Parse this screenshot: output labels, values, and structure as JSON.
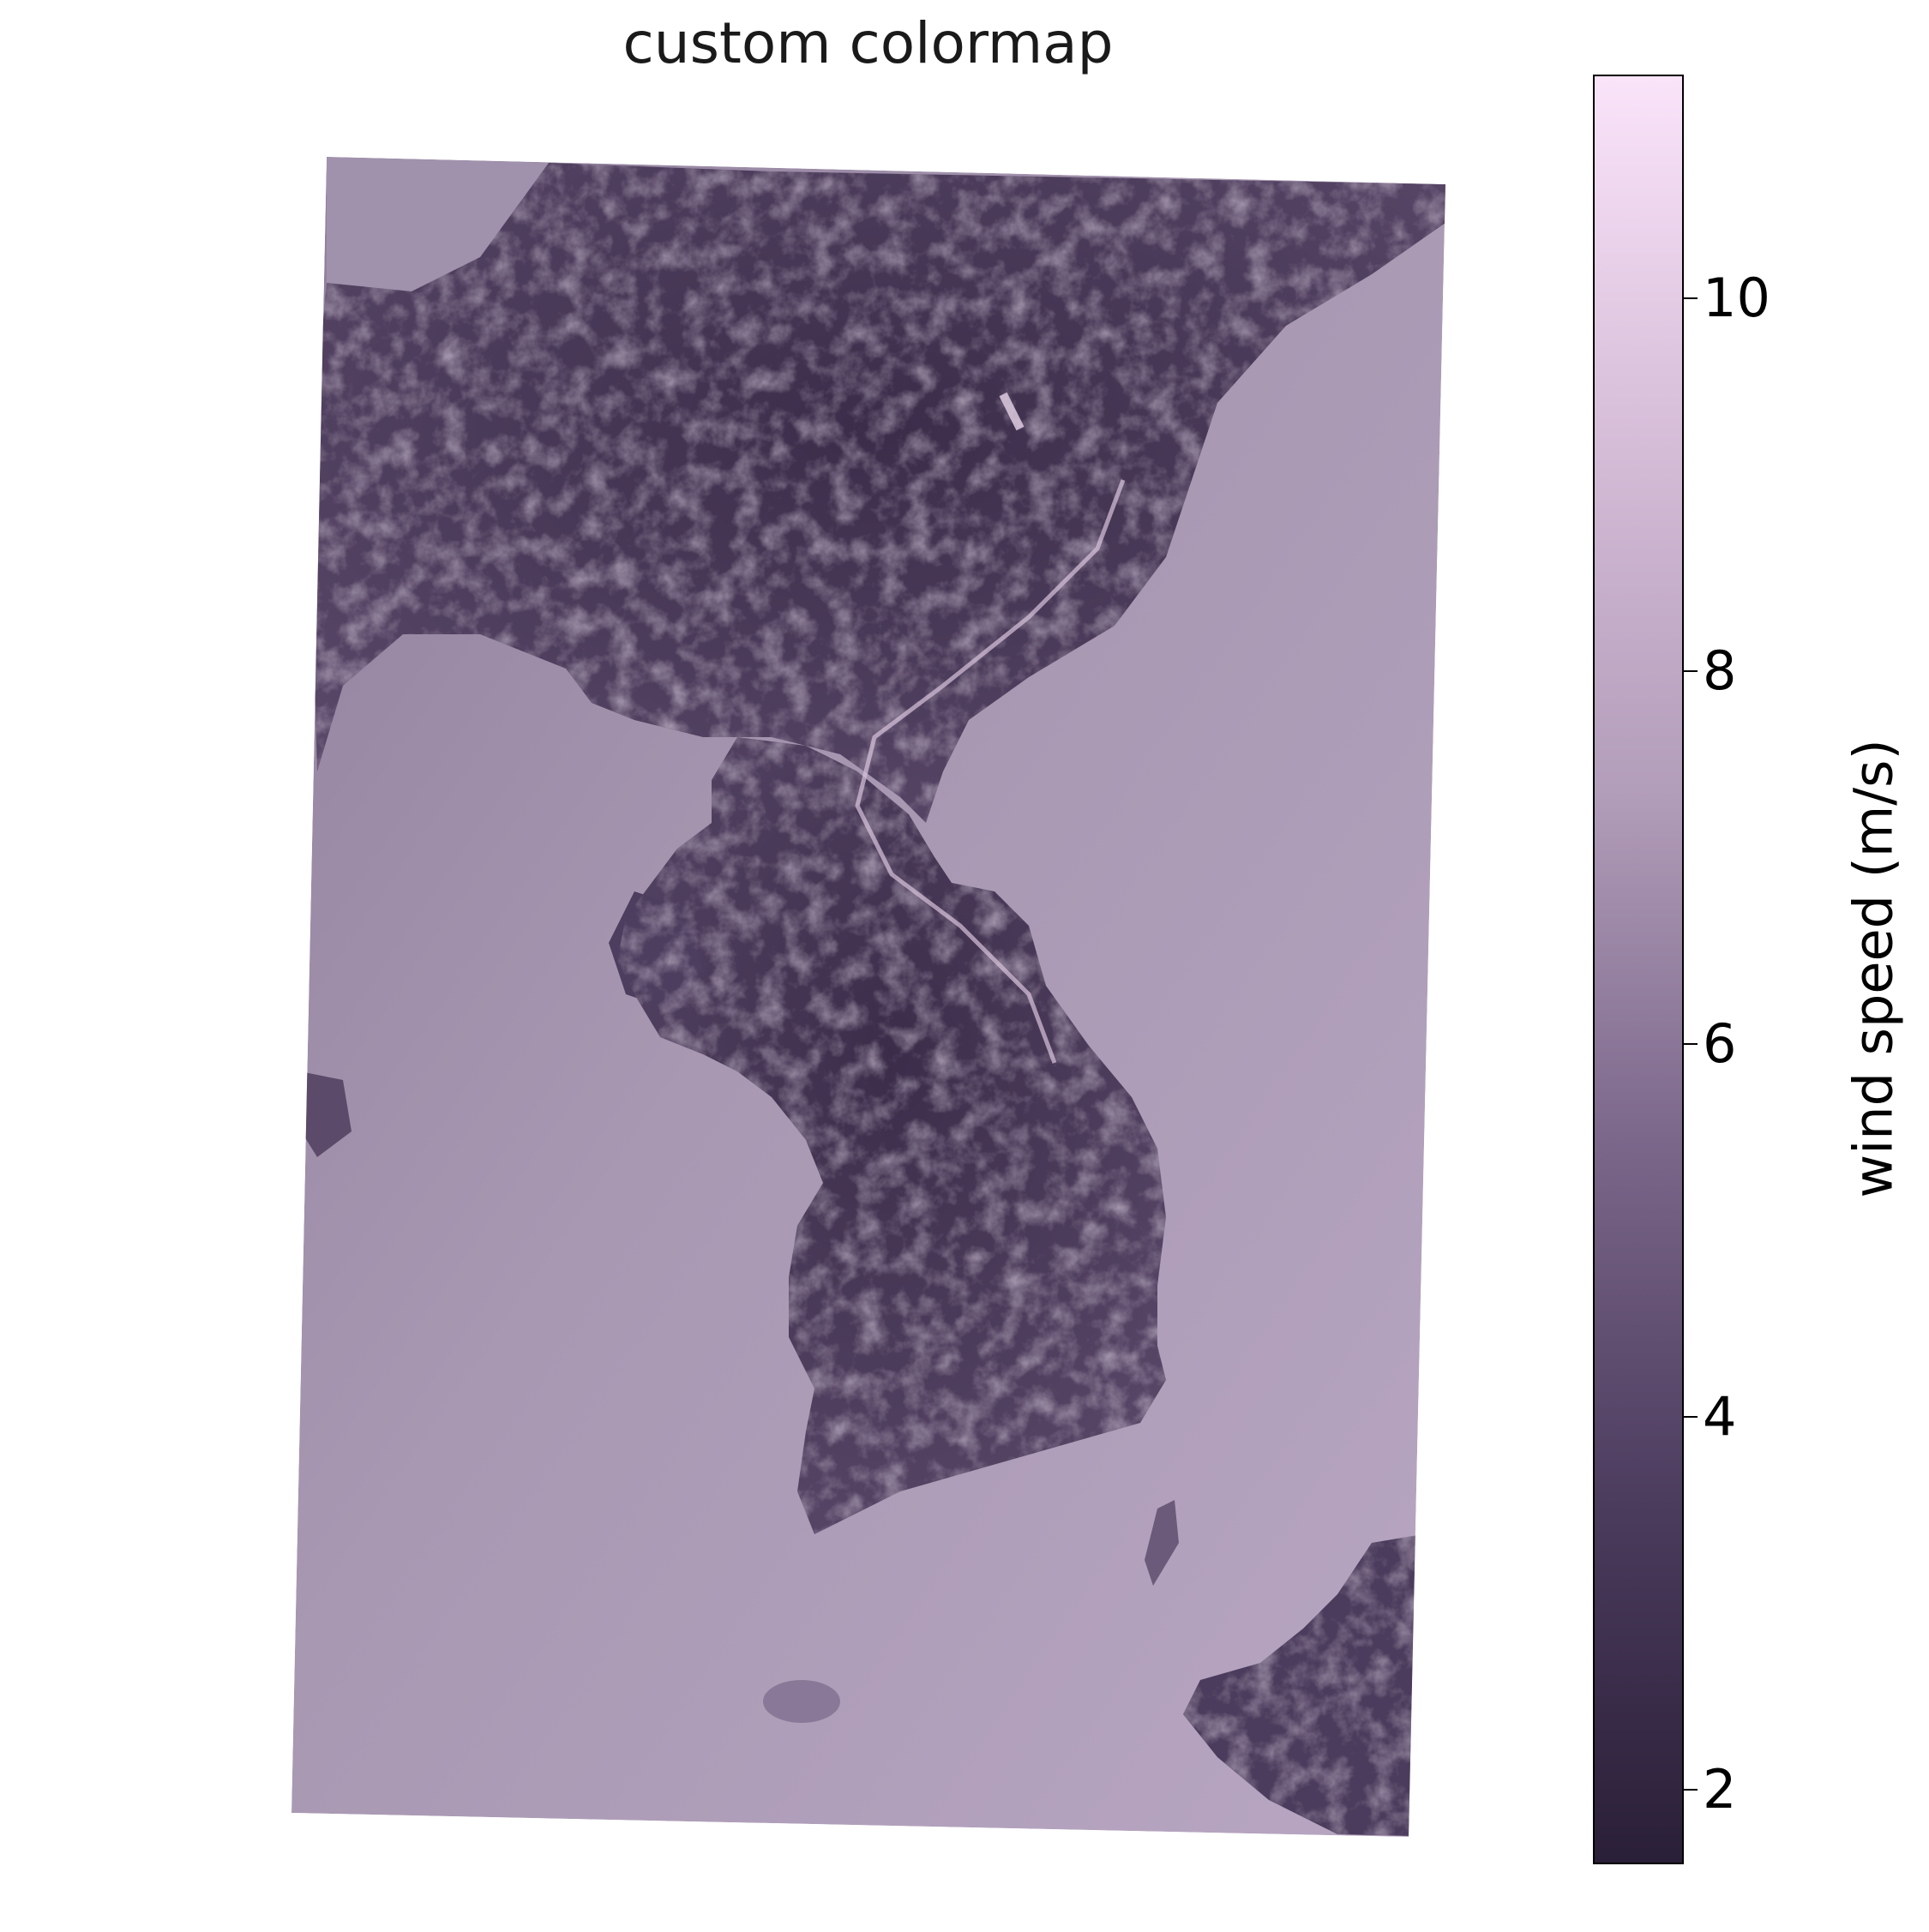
{
  "title": "custom colormap",
  "colorbar": {
    "label": "wind speed (m/s)",
    "min": 1.6,
    "max": 11.2,
    "ticks": [
      {
        "value": 2,
        "label": "2"
      },
      {
        "value": 4,
        "label": "4"
      },
      {
        "value": 6,
        "label": "6"
      },
      {
        "value": 8,
        "label": "8"
      },
      {
        "value": 10,
        "label": "10"
      }
    ],
    "colors": [
      "#2a1f38",
      "#4b3b5d",
      "#7a6689",
      "#b29dba",
      "#d6bdd8",
      "#fae4fa"
    ]
  },
  "map": {
    "region": "Korean Peninsula",
    "sea_color": "#a898b2",
    "land_color": "#4a3a5a",
    "ridge_color": "#d8c3dc"
  },
  "chart_data": {
    "type": "heatmap",
    "title": "custom colormap",
    "colorbar_label": "wind speed (m/s)",
    "value_range": [
      1.6,
      11.2
    ],
    "colorbar_ticks": [
      2,
      4,
      6,
      8,
      10
    ]
  }
}
